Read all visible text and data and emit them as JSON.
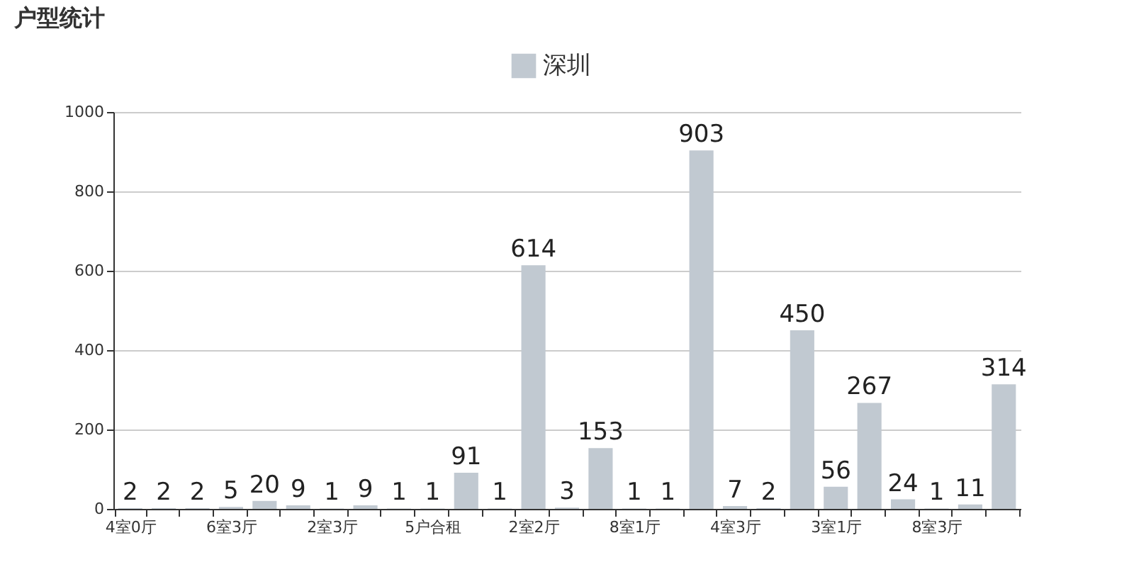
{
  "chart_data": {
    "type": "bar",
    "title": "户型统计",
    "categories": [
      "4室0厅",
      null,
      null,
      "6室3厅",
      null,
      null,
      "2室3厅",
      null,
      null,
      "5户合租",
      null,
      null,
      "2室2厅",
      null,
      null,
      "8室1厅",
      null,
      null,
      "4室3厅",
      null,
      null,
      "3室1厅",
      null,
      null,
      "8室3厅",
      null,
      null
    ],
    "series": [
      {
        "name": "深圳",
        "color": "#c1c9d1",
        "values": [
          2,
          2,
          2,
          5,
          20,
          9,
          1,
          9,
          1,
          1,
          91,
          1,
          614,
          3,
          153,
          1,
          1,
          903,
          7,
          2,
          450,
          56,
          267,
          24,
          1,
          11,
          314
        ]
      }
    ],
    "ylim": [
      0,
      1000
    ],
    "yticks": [
      0,
      200,
      400,
      600,
      800,
      1000
    ],
    "grid": "y",
    "legend": "top",
    "data_labels": true
  }
}
